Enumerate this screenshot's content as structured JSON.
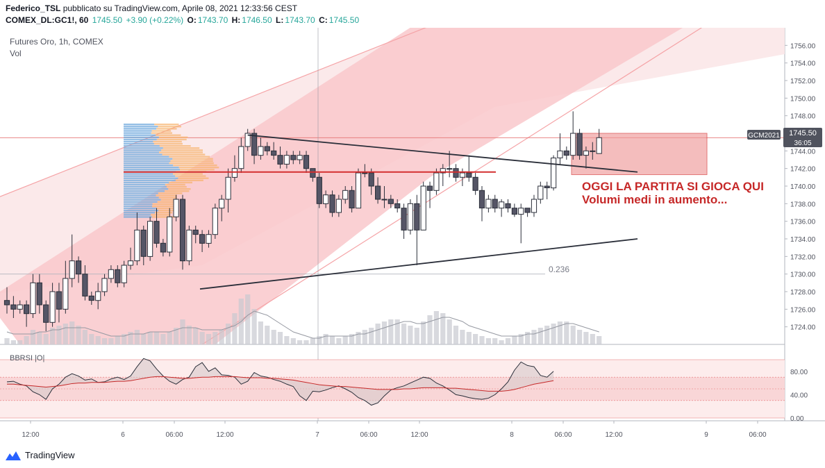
{
  "header": {
    "author": "Federico_TSL",
    "published": "pubblicato su TradingView.com, Aprile 08, 2021 12:33:56 CEST",
    "symbol": "COMEX_DL:GC1!, 60",
    "last": "1745.50",
    "change": "+3.90 (+0.22%)",
    "o_label": "O:",
    "o": "1743.70",
    "h_label": "H:",
    "h": "1746.50",
    "l_label": "L:",
    "l": "1743.70",
    "c_label": "C:",
    "c": "1745.50"
  },
  "pane": {
    "title": "Futures Oro, 1h, COMEX",
    "vol_label": "Vol"
  },
  "price_badge": {
    "symbol": "GCM2021",
    "price": "1745.50",
    "countdown": "36:05"
  },
  "fib_label": "0.236",
  "annotations": [
    "OGGI LA PARTITA SI GIOCA QUI",
    "Volumi medi in aumento..."
  ],
  "rsi": {
    "label": "BBRSI |O|",
    "ticks": [
      "80.00",
      "40.00",
      "0.00"
    ]
  },
  "x_ticks": [
    "12:00",
    "6",
    "06:00",
    "12:00",
    "7",
    "06:00",
    "12:00",
    "8",
    "06:00",
    "12:00",
    "9",
    "06:00"
  ],
  "footer": {
    "brand": "TradingView"
  },
  "colors": {
    "bull": "#ffffff",
    "bear": "#555566",
    "channel": "#f5a3a6",
    "level": "#d32f2f",
    "annotation": "#c62828",
    "volume": "#c8c9d0"
  },
  "chart_data": {
    "type": "candlestick",
    "title": "Futures Oro, 1h, COMEX",
    "ylim": [
      1722,
      1758
    ],
    "y_ticks": [
      1756,
      1754,
      1752,
      1750,
      1748,
      1746,
      1744,
      1742,
      1740,
      1738,
      1736,
      1734,
      1732,
      1730,
      1728,
      1726,
      1724
    ],
    "level": 1741.6,
    "fib_0236": 1730,
    "candles": [
      [
        1727,
        1728.5,
        1725.5,
        1726.5
      ],
      [
        1726.5,
        1727.5,
        1725,
        1726
      ],
      [
        1726,
        1727,
        1725.5,
        1726.5
      ],
      [
        1726.5,
        1727,
        1724,
        1725.5
      ],
      [
        1725.5,
        1730,
        1725,
        1729
      ],
      [
        1729,
        1730,
        1725.5,
        1726.5
      ],
      [
        1726.5,
        1727,
        1723.5,
        1724.5
      ],
      [
        1724.5,
        1729,
        1724,
        1728
      ],
      [
        1728,
        1729,
        1724.5,
        1726
      ],
      [
        1726,
        1731.5,
        1725.5,
        1729.5
      ],
      [
        1729.5,
        1734.5,
        1728.5,
        1731.5
      ],
      [
        1731.5,
        1732,
        1729,
        1730
      ],
      [
        1730,
        1731,
        1727,
        1727.5
      ],
      [
        1727.5,
        1728,
        1726.5,
        1727
      ],
      [
        1727,
        1729,
        1726,
        1728
      ],
      [
        1728,
        1730,
        1727.5,
        1729.5
      ],
      [
        1729.5,
        1731,
        1729,
        1730.5
      ],
      [
        1730.5,
        1731,
        1728.5,
        1729
      ],
      [
        1729,
        1731.5,
        1728.5,
        1731
      ],
      [
        1731,
        1733,
        1730.5,
        1731.5
      ],
      [
        1731.5,
        1737,
        1731,
        1735
      ],
      [
        1735,
        1735.5,
        1731,
        1732
      ],
      [
        1732,
        1736.5,
        1731.5,
        1736
      ],
      [
        1736,
        1737.5,
        1733,
        1733.5
      ],
      [
        1733.5,
        1734,
        1732,
        1732.5
      ],
      [
        1732.5,
        1737.5,
        1732,
        1736.5
      ],
      [
        1736.5,
        1739,
        1736,
        1738.5
      ],
      [
        1738.5,
        1739,
        1730.5,
        1731.5
      ],
      [
        1731.5,
        1735.5,
        1731,
        1735
      ],
      [
        1735,
        1735.5,
        1733.5,
        1734.5
      ],
      [
        1734.5,
        1735,
        1732.5,
        1733.5
      ],
      [
        1733.5,
        1735,
        1733,
        1734.5
      ],
      [
        1734.5,
        1738,
        1734,
        1737.5
      ],
      [
        1737.5,
        1739,
        1736,
        1738.5
      ],
      [
        1738.5,
        1742,
        1737,
        1741
      ],
      [
        1741,
        1743.5,
        1740.5,
        1742
      ],
      [
        1742,
        1745.5,
        1741.5,
        1744.5
      ],
      [
        1744.5,
        1746.5,
        1744,
        1746
      ],
      [
        1746,
        1746.5,
        1742.5,
        1743.5
      ],
      [
        1743.5,
        1745.5,
        1743,
        1744.5
      ],
      [
        1744.5,
        1745,
        1743.5,
        1744
      ],
      [
        1744,
        1745,
        1743,
        1743.5
      ],
      [
        1743.5,
        1744.5,
        1742,
        1742.5
      ],
      [
        1742.5,
        1744,
        1742,
        1743.5
      ],
      [
        1743.5,
        1744,
        1742.5,
        1743
      ],
      [
        1743,
        1744,
        1742.5,
        1743.5
      ],
      [
        1743.5,
        1744,
        1741.5,
        1742
      ],
      [
        1742,
        1742,
        1740.5,
        1741
      ],
      [
        1741,
        1741.5,
        1737.5,
        1738
      ],
      [
        1738,
        1739.5,
        1737.5,
        1739
      ],
      [
        1739,
        1739.5,
        1736.5,
        1737
      ],
      [
        1737,
        1739,
        1736.5,
        1738.5
      ],
      [
        1738.5,
        1740,
        1738,
        1739.5
      ],
      [
        1739.5,
        1740,
        1737,
        1737.5
      ],
      [
        1737.5,
        1742,
        1737.5,
        1741.5
      ],
      [
        1741.5,
        1742.5,
        1741,
        1741.5
      ],
      [
        1741.5,
        1742,
        1739,
        1740
      ],
      [
        1740,
        1741,
        1738,
        1738.5
      ],
      [
        1738.5,
        1740,
        1737.5,
        1738.5
      ],
      [
        1738.5,
        1739,
        1737.5,
        1738
      ],
      [
        1738,
        1738.5,
        1737,
        1737.5
      ],
      [
        1737.5,
        1738,
        1734,
        1735
      ],
      [
        1735,
        1738.5,
        1734.5,
        1738
      ],
      [
        1738,
        1739,
        1731,
        1735
      ],
      [
        1735,
        1740.5,
        1735,
        1740
      ],
      [
        1740,
        1740.5,
        1737.5,
        1739.5
      ],
      [
        1739.5,
        1742,
        1739,
        1741.5
      ],
      [
        1741.5,
        1742.5,
        1740,
        1742
      ],
      [
        1742,
        1744,
        1741,
        1742
      ],
      [
        1742,
        1742.5,
        1740.5,
        1741
      ],
      [
        1741,
        1742,
        1740,
        1741.5
      ],
      [
        1741.5,
        1743.5,
        1740.5,
        1741
      ],
      [
        1741,
        1741.5,
        1739,
        1739.5
      ],
      [
        1739.5,
        1740,
        1736,
        1737.5
      ],
      [
        1737.5,
        1739,
        1737,
        1738.5
      ],
      [
        1738.5,
        1739,
        1737,
        1737.5
      ],
      [
        1737.5,
        1738.5,
        1736.5,
        1738.2
      ],
      [
        1738,
        1738.5,
        1737,
        1737.5
      ],
      [
        1737.5,
        1738,
        1736.5,
        1736.8
      ],
      [
        1736.8,
        1738,
        1733.5,
        1737.5
      ],
      [
        1737.5,
        1737.5,
        1736.5,
        1737
      ],
      [
        1737,
        1739,
        1736.5,
        1738.5
      ],
      [
        1738.5,
        1740.5,
        1738,
        1740
      ],
      [
        1740,
        1740.5,
        1738.5,
        1739.8
      ],
      [
        1739.8,
        1743.5,
        1739.5,
        1743.2
      ],
      [
        1743.2,
        1746,
        1742.5,
        1744
      ],
      [
        1744,
        1744.5,
        1743,
        1743.5
      ],
      [
        1743.5,
        1748.5,
        1743,
        1746
      ],
      [
        1746,
        1746.5,
        1743,
        1743.5
      ],
      [
        1743.5,
        1744.5,
        1742,
        1744
      ],
      [
        1744,
        1745,
        1743,
        1744
      ],
      [
        1743.7,
        1746.5,
        1743.7,
        1745.5
      ]
    ],
    "volume": [
      3,
      2,
      2,
      4,
      7,
      6,
      5,
      8,
      9,
      10,
      11,
      9,
      7,
      5,
      4,
      3,
      3,
      4,
      5,
      6,
      7,
      5,
      6,
      6,
      5,
      6,
      8,
      12,
      9,
      8,
      6,
      5,
      6,
      7,
      10,
      15,
      22,
      24,
      17,
      11,
      9,
      7,
      6,
      4,
      3,
      2,
      2,
      3,
      4,
      5,
      4,
      3,
      4,
      5,
      6,
      7,
      8,
      10,
      11,
      12,
      12,
      10,
      9,
      8,
      11,
      14,
      16,
      15,
      12,
      9,
      7,
      6,
      5,
      4,
      3,
      3,
      2,
      3,
      4,
      5,
      6,
      7,
      8,
      9,
      10,
      11,
      11,
      9,
      7,
      6,
      5,
      4
    ],
    "vol_ma": [
      6,
      5,
      5,
      5,
      5,
      6,
      6,
      7,
      7,
      8,
      8,
      8,
      8,
      7,
      6,
      5,
      4,
      4,
      4,
      5,
      5,
      5,
      6,
      6,
      6,
      6,
      7,
      8,
      8,
      8,
      7,
      7,
      7,
      7,
      8,
      9,
      11,
      14,
      16,
      15,
      14,
      12,
      10,
      8,
      6,
      5,
      4,
      3,
      3,
      4,
      4,
      4,
      4,
      4,
      5,
      5,
      6,
      7,
      8,
      9,
      10,
      11,
      11,
      10,
      10,
      11,
      12,
      13,
      13,
      12,
      11,
      9,
      8,
      7,
      6,
      5,
      4,
      4,
      4,
      4,
      5,
      5,
      6,
      7,
      8,
      9,
      10,
      10,
      9,
      8,
      7,
      6
    ],
    "rsi_series": [
      {
        "values": [
          62,
          63,
          58,
          55,
          45,
          40,
          32,
          50,
          58,
          70,
          76,
          72,
          65,
          67,
          61,
          62,
          67,
          70,
          66,
          72,
          88,
          102,
          98,
          84,
          72,
          63,
          58,
          66,
          70,
          88,
          95,
          80,
          86,
          74,
          73,
          70,
          58,
          63,
          78,
          72,
          70,
          66,
          63,
          58,
          54,
          38,
          30,
          46,
          45,
          48,
          52,
          55,
          50,
          44,
          35,
          30,
          22,
          26,
          38,
          48,
          52,
          55,
          60,
          65,
          70,
          68,
          60,
          55,
          48,
          40,
          38,
          35,
          33,
          32,
          34,
          40,
          50,
          62,
          82,
          96,
          90,
          88,
          73,
          70,
          80
        ]
      },
      {
        "values": [
          58,
          58,
          57,
          56,
          55,
          54,
          53,
          54,
          55,
          57,
          59,
          60,
          60,
          61,
          61,
          61,
          62,
          63,
          63,
          64,
          66,
          68,
          70,
          71,
          71,
          70,
          69,
          68,
          68,
          69,
          70,
          70,
          71,
          71,
          71,
          71,
          70,
          69,
          69,
          69,
          68,
          68,
          67,
          66,
          65,
          63,
          61,
          59,
          57,
          56,
          55,
          54,
          54,
          53,
          52,
          51,
          50,
          49,
          49,
          49,
          49,
          50,
          50,
          51,
          52,
          52,
          52,
          52,
          51,
          51,
          50,
          49,
          48,
          47,
          46,
          46,
          46,
          47,
          49,
          52,
          55,
          58,
          60,
          62,
          64
        ]
      }
    ]
  }
}
